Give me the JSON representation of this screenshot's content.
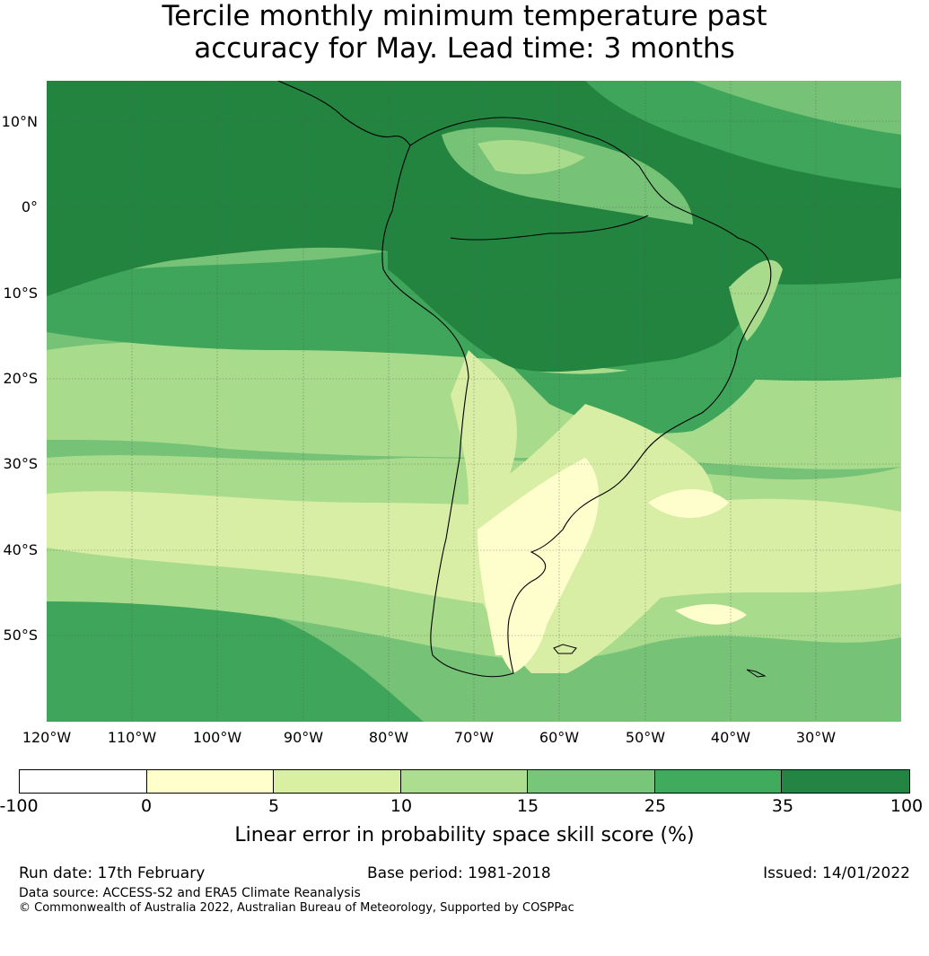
{
  "title": {
    "line1": "Tercile monthly minimum temperature past",
    "line2": "accuracy for May. Lead time: 3 months"
  },
  "map": {
    "lat_labels": [
      "10°N",
      "0°",
      "10°S",
      "20°S",
      "30°S",
      "40°S",
      "50°S"
    ],
    "lon_labels": [
      "120°W",
      "110°W",
      "100°W",
      "90°W",
      "80°W",
      "70°W",
      "60°W",
      "50°W",
      "40°W",
      "30°W"
    ],
    "colors": {
      "ocean_north": "#23843f",
      "band_25_35": "#3ea55a",
      "band_15_25": "#76c277",
      "band_10_15": "#a8db8c",
      "band_5_10": "#d8eea4",
      "band_0_5": "#fefecd",
      "coast": "#000000"
    }
  },
  "colorbar": {
    "ticks": [
      "-100",
      "0",
      "5",
      "10",
      "15",
      "25",
      "35",
      "100"
    ],
    "colors": [
      "#ffffff",
      "#ffffcc",
      "#d9f0a3",
      "#addd8e",
      "#78c679",
      "#41ab5d",
      "#238443"
    ],
    "label": "Linear error in probability space skill score (%)"
  },
  "footer": {
    "run_date": "Run date: 17th February",
    "base_period": "Base period: 1981-2018",
    "issued": "Issued: 14/01/2022",
    "data_source": "Data source: ACCESS-S2 and ERA5 Climate Reanalysis",
    "copyright": "© Commonwealth of Australia 2022, Australian Bureau of Meteorology, Supported by COSPPac"
  }
}
